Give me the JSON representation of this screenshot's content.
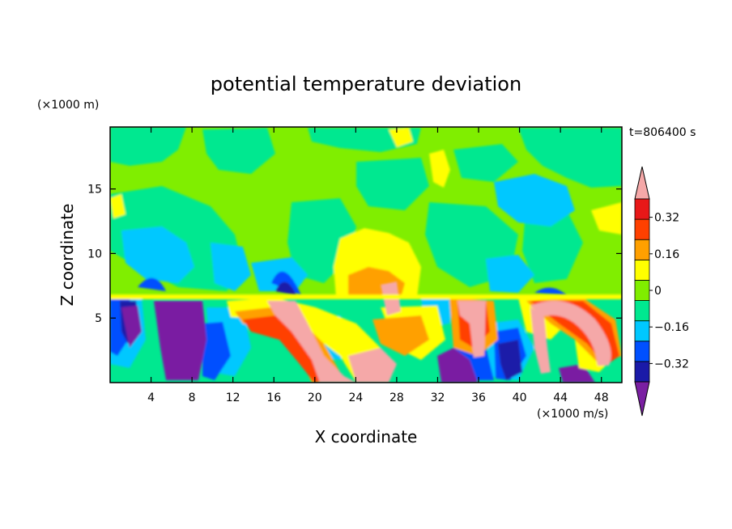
{
  "chart_data": {
    "type": "heatmap",
    "title": "potential temperature deviation",
    "xlabel": "X coordinate",
    "ylabel": "Z coordinate",
    "x_unit": "(×1000 m/s)",
    "y_unit": "(×1000 m)",
    "time_label": "t=806400 s",
    "xlim": [
      0,
      50
    ],
    "ylim": [
      0,
      19.8
    ],
    "x_ticks": [
      4,
      8,
      12,
      16,
      20,
      24,
      28,
      32,
      36,
      40,
      44,
      48
    ],
    "x_tick_labels": [
      "4",
      "8",
      "12",
      "16",
      "20",
      "24",
      "28",
      "32",
      "36",
      "40",
      "44",
      "48"
    ],
    "y_ticks": [
      5,
      10,
      15
    ],
    "y_tick_labels": [
      "5",
      "10",
      "15"
    ],
    "colorbar": {
      "levels": [
        -0.4,
        -0.32,
        -0.24,
        -0.16,
        -0.08,
        0,
        0.08,
        0.16,
        0.24,
        0.32,
        0.4
      ],
      "colors": [
        "#7a1fa2",
        "#1a1aa8",
        "#0050ff",
        "#00c8ff",
        "#00e890",
        "#80ee00",
        "#ffff00",
        "#ffa000",
        "#ff4000",
        "#e81818",
        "#f5a8a8"
      ],
      "tick_values": [
        -0.32,
        -0.16,
        0,
        0.16,
        0.32
      ],
      "tick_labels": [
        "−0.32",
        "−0.16",
        "0",
        "0.16",
        "0.32"
      ]
    },
    "regions": [
      {
        "desc": "upper layer green/lime",
        "z_range": [
          7,
          19.8
        ],
        "value": 0.02
      },
      {
        "desc": "cyan negative patches aloft",
        "z_range": [
          7,
          15
        ],
        "value": -0.12
      },
      {
        "desc": "yellow-orange warm column",
        "x_range": [
          21,
          31
        ],
        "z_range": [
          6.5,
          11.5
        ],
        "value": 0.18
      },
      {
        "desc": "purple cold column",
        "x_range": [
          4,
          9
        ],
        "z_range": [
          0,
          6.5
        ],
        "value": -0.38
      },
      {
        "desc": "pink warm arch",
        "x_range": [
          40,
          49
        ],
        "z_range": [
          0,
          6
        ],
        "value": 0.38
      },
      {
        "desc": "pink diagonal warm streak",
        "x_range": [
          14,
          28
        ],
        "z_range": [
          0,
          6.5
        ],
        "value": 0.35
      }
    ]
  }
}
